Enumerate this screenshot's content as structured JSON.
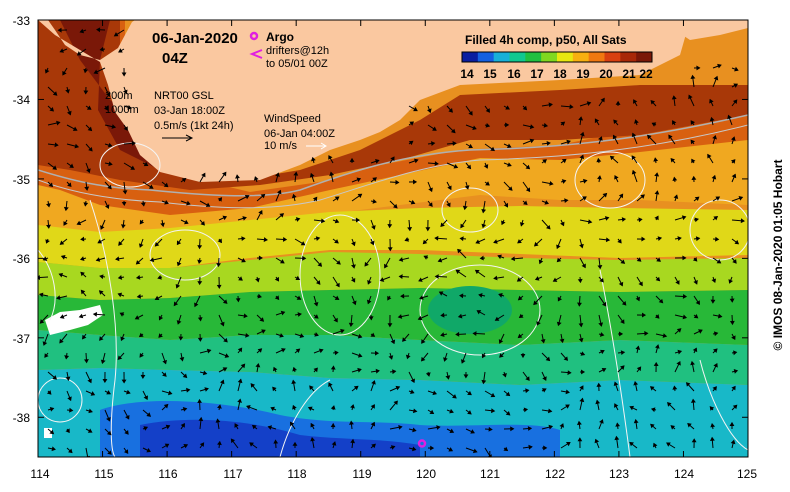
{
  "title": {
    "date": "06-Jan-2020",
    "time": "04Z"
  },
  "argo": {
    "label": "Argo",
    "drifters_line1": "drifters@12h",
    "drifters_line2": "to 05/01 00Z",
    "marker_color": "#e020e0"
  },
  "isobaths": {
    "shallow": "200m",
    "deep": "1000m"
  },
  "current_vectors": {
    "source": "NRT00 GSL",
    "time": "03-Jan 18:00Z",
    "scale": "0.5m/s (1kt 24h)"
  },
  "wind": {
    "label": "WindSpeed",
    "time": "06-Jan 04:00Z",
    "scale": "10 m/s"
  },
  "colorbar": {
    "title": "Filled 4h comp, p50, All Sats",
    "ticks": [
      "14",
      "15",
      "16",
      "17",
      "18",
      "19",
      "20",
      "21",
      "22"
    ],
    "colors": [
      "#0a1ea0",
      "#1560e0",
      "#18b0d8",
      "#10c890",
      "#20c040",
      "#80d820",
      "#e8e810",
      "#f8b010",
      "#f07810",
      "#d84010",
      "#a82808",
      "#7a1808"
    ]
  },
  "axes": {
    "x_ticks": [
      "114",
      "115",
      "116",
      "117",
      "118",
      "119",
      "120",
      "121",
      "122",
      "123",
      "124",
      "125"
    ],
    "y_ticks": [
      "-33",
      "-34",
      "-35",
      "-36",
      "-37",
      "-38"
    ],
    "x_range": [
      114,
      125
    ],
    "y_range": [
      -38.5,
      -33
    ]
  },
  "argo_floats": [
    {
      "lon": 119.95,
      "lat": -38.33
    }
  ],
  "credit": "© IMOS 08-Jan-2020 01:05 Hobart",
  "colors": {
    "land": "#fac8a0",
    "frame": "#000000"
  }
}
